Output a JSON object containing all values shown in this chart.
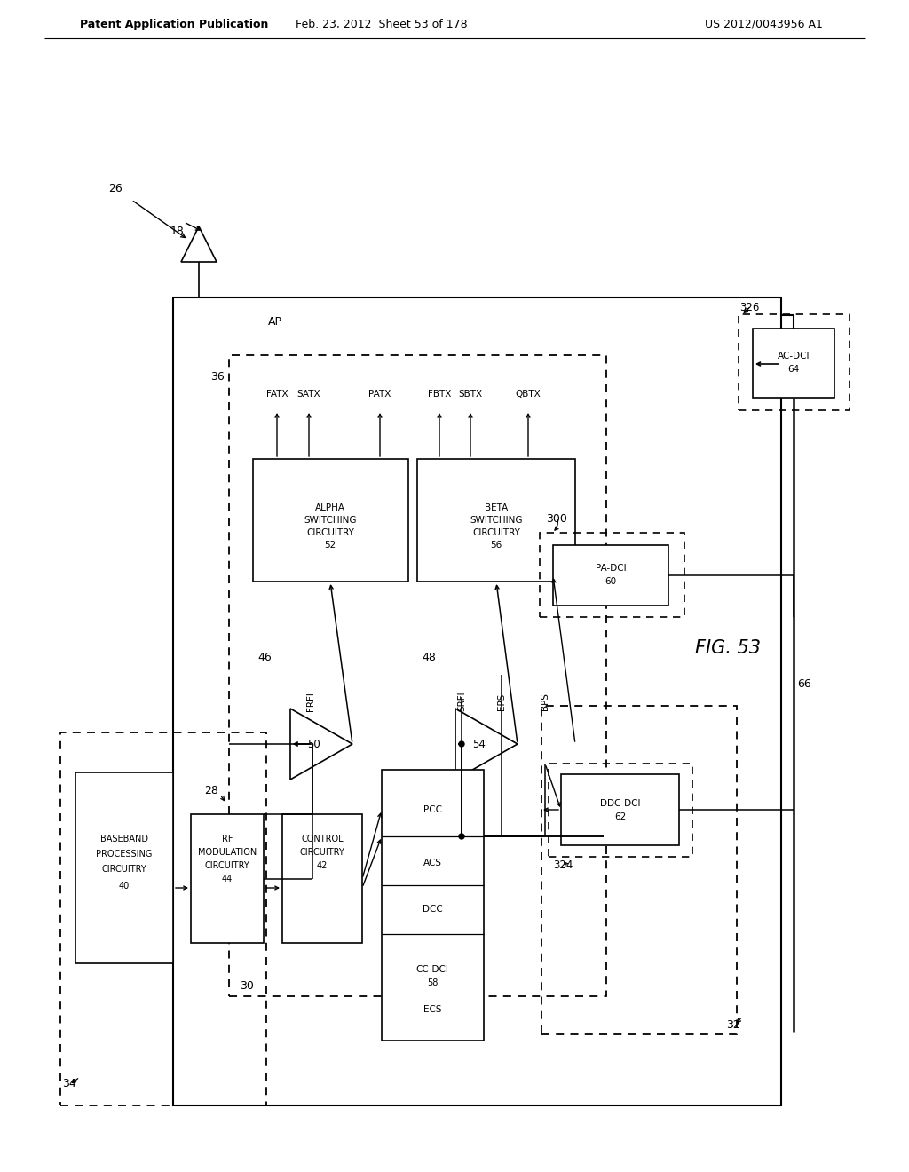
{
  "bg": "#ffffff",
  "header_left": "Patent Application Publication",
  "header_mid": "Feb. 23, 2012  Sheet 53 of 178",
  "header_right": "US 2012/0043956 A1",
  "fig_label": "FIG. 53"
}
